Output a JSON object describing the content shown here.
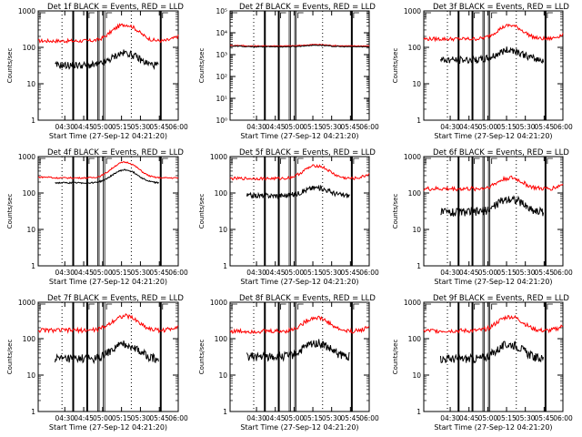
{
  "chart_data": {
    "type": "line",
    "ylabel": "Counts/sec",
    "xlabel": "Start Time (27-Sep-12 04:21:20)",
    "x_ticks": [
      "04:30",
      "04:45",
      "05:00",
      "05:15",
      "05:30",
      "05:45",
      "06:00"
    ],
    "y_scale": "log",
    "series_colors": {
      "events": "#000000",
      "lld": "#ff0000"
    },
    "panels": [
      {
        "title": "Det 1f BLACK = Events, RED = LLD",
        "ylim": [
          1,
          1000
        ],
        "y_ticks": [
          "1",
          "10",
          "100",
          "1000"
        ],
        "lld": {
          "base": 150,
          "peak": 420,
          "start": 1,
          "noise": 0.05
        },
        "events": {
          "base": 32,
          "peak": 70,
          "start": 3,
          "noise": 0.1
        }
      },
      {
        "title": "Det 2f BLACK = Events, RED = LLD",
        "ylim": [
          1,
          100000
        ],
        "y_ticks": [
          "10⁰",
          "10¹",
          "10²",
          "10³",
          "10⁴",
          "10⁵"
        ],
        "lld": {
          "base": 2500,
          "peak": 2900,
          "start": 0,
          "noise": 0.02
        },
        "events": {
          "base": 2300,
          "peak": 2700,
          "start": 0,
          "noise": 0.02
        }
      },
      {
        "title": "Det 3f BLACK = Events, RED = LLD",
        "ylim": [
          1,
          1000
        ],
        "y_ticks": [
          "1",
          "10",
          "100",
          "1000"
        ],
        "lld": {
          "base": 170,
          "peak": 400,
          "start": 1,
          "noise": 0.05
        },
        "events": {
          "base": 45,
          "peak": 85,
          "start": 5,
          "noise": 0.1
        }
      },
      {
        "title": "Det 4f BLACK = Events, RED = LLD",
        "ylim": [
          1,
          1000
        ],
        "y_ticks": [
          "1",
          "10",
          "100",
          "1000"
        ],
        "lld": {
          "base": 260,
          "peak": 700,
          "start": 0,
          "noise": 0.02
        },
        "events": {
          "base": 190,
          "peak": 430,
          "start": 3,
          "noise": 0.02
        }
      },
      {
        "title": "Det 5f BLACK = Events, RED = LLD",
        "ylim": [
          1,
          1000
        ],
        "y_ticks": [
          "1",
          "10",
          "100",
          "1000"
        ],
        "lld": {
          "base": 250,
          "peak": 560,
          "start": 1,
          "noise": 0.04
        },
        "events": {
          "base": 85,
          "peak": 140,
          "start": 3,
          "noise": 0.07
        }
      },
      {
        "title": "Det 6f BLACK = Events, RED = LLD",
        "ylim": [
          1,
          1000
        ],
        "y_ticks": [
          "1",
          "10",
          "100",
          "1000"
        ],
        "lld": {
          "base": 130,
          "peak": 260,
          "start": 1,
          "noise": 0.06
        },
        "events": {
          "base": 30,
          "peak": 70,
          "start": 5,
          "noise": 0.12
        }
      },
      {
        "title": "Det 7f BLACK = Events, RED = LLD",
        "ylim": [
          1,
          1000
        ],
        "y_ticks": [
          "1",
          "10",
          "100",
          "1000"
        ],
        "lld": {
          "base": 170,
          "peak": 420,
          "start": 1,
          "noise": 0.06
        },
        "events": {
          "base": 28,
          "peak": 70,
          "start": 5,
          "noise": 0.12
        }
      },
      {
        "title": "Det 8f BLACK = Events, RED = LLD",
        "ylim": [
          1,
          1000
        ],
        "y_ticks": [
          "1",
          "10",
          "100",
          "1000"
        ],
        "lld": {
          "base": 160,
          "peak": 380,
          "start": 1,
          "noise": 0.06
        },
        "events": {
          "base": 32,
          "peak": 75,
          "start": 5,
          "noise": 0.12
        }
      },
      {
        "title": "Det 9f BLACK = Events, RED = LLD",
        "ylim": [
          1,
          1000
        ],
        "y_ticks": [
          "1",
          "10",
          "100",
          "1000"
        ],
        "lld": {
          "base": 165,
          "peak": 400,
          "start": 1,
          "noise": 0.06
        },
        "events": {
          "base": 28,
          "peak": 70,
          "start": 5,
          "noise": 0.12
        }
      }
    ]
  }
}
